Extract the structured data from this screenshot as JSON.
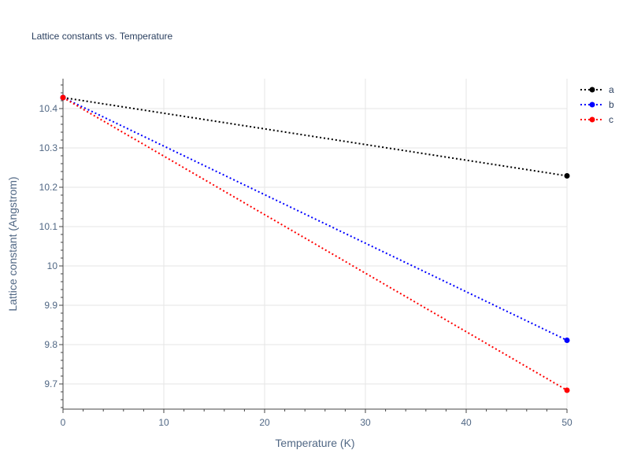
{
  "chart_data": {
    "type": "line",
    "title": "Lattice constants vs. Temperature",
    "xlabel": "Temperature (K)",
    "ylabel": "Lattice constant (Angstrom)",
    "xlim": [
      0,
      50
    ],
    "ylim": [
      9.636,
      10.476
    ],
    "xticks": [
      0,
      10,
      20,
      30,
      40,
      50
    ],
    "xtick_labels": [
      "0",
      "10",
      "20",
      "30",
      "40",
      "50"
    ],
    "yticks": [
      9.7,
      9.8,
      9.9,
      10.0,
      10.1,
      10.2,
      10.3,
      10.4
    ],
    "ytick_labels": [
      "9.7",
      "9.8",
      "9.9",
      "10",
      "10.1",
      "10.2",
      "10.3",
      "10.4"
    ],
    "grid": true,
    "legend_position": "top-right",
    "line_style": "dotted",
    "series": [
      {
        "name": "a",
        "color": "#000000",
        "x": [
          0,
          50
        ],
        "values": [
          10.428,
          10.229
        ]
      },
      {
        "name": "b",
        "color": "#0000ff",
        "x": [
          0,
          50
        ],
        "values": [
          10.428,
          9.811
        ]
      },
      {
        "name": "c",
        "color": "#ff0000",
        "x": [
          0,
          50
        ],
        "values": [
          10.428,
          9.684
        ]
      }
    ]
  }
}
